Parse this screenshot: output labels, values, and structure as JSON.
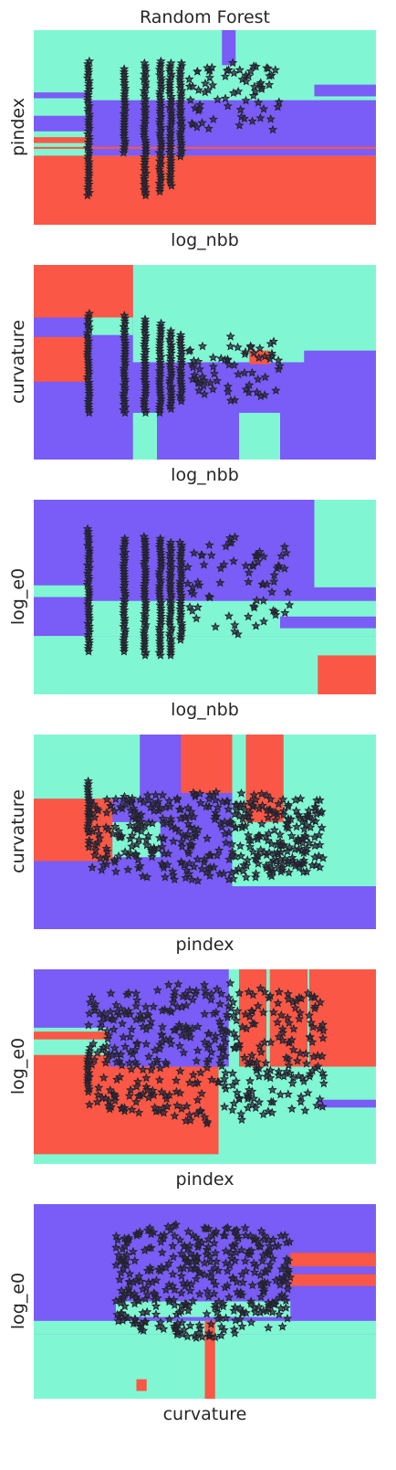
{
  "title": "Random Forest",
  "colors": {
    "purple": "#7a5cf6",
    "teal": "#80f7d2",
    "red": "#fa5746",
    "marker_fill": "#2b2650",
    "marker_edge": "#222222"
  },
  "chart_data": [
    {
      "type": "scatter",
      "subtype": "decision-boundary",
      "xlabel": "log_nbb",
      "ylabel": "pindex",
      "background": "teal",
      "regions": [
        {
          "class": "red",
          "rect": [
            0,
            0.355,
            1,
            0.0
          ]
        },
        {
          "class": "purple",
          "rect": [
            0.16,
            0.64,
            1,
            0.355
          ]
        },
        {
          "class": "purple",
          "rect": [
            0,
            0.56,
            0.16,
            0.48
          ]
        },
        {
          "class": "purple",
          "rect": [
            0.82,
            0.72,
            1,
            0.66
          ]
        },
        {
          "class": "purple",
          "rect": [
            0.55,
            1,
            0.59,
            0.82
          ]
        },
        {
          "class": "red",
          "rect": [
            0,
            0.45,
            0.16,
            0.42
          ]
        },
        {
          "class": "purple",
          "rect": [
            0,
            0.68,
            0.16,
            0.65
          ]
        },
        {
          "class": "red",
          "rect": [
            0,
            0.4,
            1,
            0.39
          ]
        }
      ],
      "points": {
        "columns": [
          {
            "x": 0.16,
            "ymin": 0.15,
            "ymax": 0.84
          },
          {
            "x": 0.265,
            "ymin": 0.37,
            "ymax": 0.8
          },
          {
            "x": 0.325,
            "ymin": 0.15,
            "ymax": 0.83
          },
          {
            "x": 0.37,
            "ymin": 0.17,
            "ymax": 0.84
          },
          {
            "x": 0.4,
            "ymin": 0.2,
            "ymax": 0.83
          },
          {
            "x": 0.43,
            "ymin": 0.35,
            "ymax": 0.83
          }
        ],
        "cloud": {
          "x0": 0.45,
          "x1": 0.72,
          "y0": 0.45,
          "y1": 0.85,
          "n": 70
        }
      }
    },
    {
      "type": "scatter",
      "subtype": "decision-boundary",
      "xlabel": "log_nbb",
      "ylabel": "curvature",
      "background": "purple",
      "regions": [
        {
          "class": "teal",
          "rect": [
            0.29,
            1,
            1,
            0.5
          ]
        },
        {
          "class": "red",
          "rect": [
            0,
            1,
            0.29,
            0.73
          ]
        },
        {
          "class": "red",
          "rect": [
            0,
            0.63,
            0.16,
            0.4
          ]
        },
        {
          "class": "teal",
          "rect": [
            0.29,
            0.24,
            0.36,
            0.0
          ]
        },
        {
          "class": "teal",
          "rect": [
            0.6,
            0.24,
            0.72,
            0.0
          ]
        },
        {
          "class": "purple",
          "rect": [
            0.79,
            0.56,
            1,
            0.44
          ]
        },
        {
          "class": "red",
          "rect": [
            0.63,
            0.56,
            0.69,
            0.49
          ]
        },
        {
          "class": "teal",
          "rect": [
            0.16,
            0.73,
            0.29,
            0.64
          ]
        }
      ],
      "points": {
        "columns": [
          {
            "x": 0.16,
            "ymin": 0.24,
            "ymax": 0.75
          },
          {
            "x": 0.265,
            "ymin": 0.24,
            "ymax": 0.74
          },
          {
            "x": 0.325,
            "ymin": 0.24,
            "ymax": 0.72
          },
          {
            "x": 0.37,
            "ymin": 0.24,
            "ymax": 0.7
          },
          {
            "x": 0.4,
            "ymin": 0.26,
            "ymax": 0.66
          },
          {
            "x": 0.43,
            "ymin": 0.3,
            "ymax": 0.64
          }
        ],
        "cloud": {
          "x0": 0.45,
          "x1": 0.72,
          "y0": 0.3,
          "y1": 0.64,
          "n": 65
        }
      }
    },
    {
      "type": "scatter",
      "subtype": "decision-boundary",
      "xlabel": "log_nbb",
      "ylabel": "log_e0",
      "background": "purple",
      "regions": [
        {
          "class": "teal",
          "rect": [
            0,
            0.3,
            1,
            0.0
          ]
        },
        {
          "class": "teal",
          "rect": [
            0.16,
            0.48,
            1,
            0.3
          ]
        },
        {
          "class": "teal",
          "rect": [
            0.82,
            1,
            1,
            0.55
          ]
        },
        {
          "class": "red",
          "rect": [
            0.83,
            0.2,
            1,
            0.0
          ]
        },
        {
          "class": "teal",
          "rect": [
            0,
            0.56,
            0.16,
            0.5
          ]
        },
        {
          "class": "purple",
          "rect": [
            0.72,
            0.4,
            1,
            0.34
          ]
        }
      ],
      "points": {
        "columns": [
          {
            "x": 0.16,
            "ymin": 0.22,
            "ymax": 0.85
          },
          {
            "x": 0.265,
            "ymin": 0.22,
            "ymax": 0.8
          },
          {
            "x": 0.325,
            "ymin": 0.2,
            "ymax": 0.81
          },
          {
            "x": 0.37,
            "ymin": 0.2,
            "ymax": 0.8
          },
          {
            "x": 0.4,
            "ymin": 0.2,
            "ymax": 0.78
          },
          {
            "x": 0.43,
            "ymin": 0.28,
            "ymax": 0.78
          }
        ],
        "cloud": {
          "x0": 0.45,
          "x1": 0.75,
          "y0": 0.3,
          "y1": 0.82,
          "n": 70
        }
      }
    },
    {
      "type": "scatter",
      "subtype": "decision-boundary",
      "xlabel": "pindex",
      "ylabel": "curvature",
      "background": "purple",
      "regions": [
        {
          "class": "teal",
          "rect": [
            0,
            1,
            0.31,
            0.67
          ]
        },
        {
          "class": "red",
          "rect": [
            0,
            0.67,
            0.23,
            0.35
          ]
        },
        {
          "class": "teal",
          "rect": [
            0.23,
            0.55,
            0.37,
            0.37
          ]
        },
        {
          "class": "red",
          "rect": [
            0.43,
            1,
            0.58,
            0.7
          ]
        },
        {
          "class": "teal",
          "rect": [
            0.58,
            1,
            1,
            0.22
          ]
        },
        {
          "class": "red",
          "rect": [
            0.62,
            1,
            0.73,
            0.55
          ]
        },
        {
          "class": "purple",
          "rect": [
            0.58,
            0.22,
            1,
            0.0
          ]
        },
        {
          "class": "red",
          "rect": [
            0.7,
            1,
            0.72,
            0.7
          ]
        }
      ],
      "points": {
        "columns": [
          {
            "x": 0.16,
            "ymin": 0.5,
            "ymax": 0.76
          }
        ],
        "cloud": {
          "x0": 0.16,
          "x1": 0.85,
          "y0": 0.24,
          "y1": 0.72,
          "n": 420
        }
      }
    },
    {
      "type": "scatter",
      "subtype": "decision-boundary",
      "xlabel": "pindex",
      "ylabel": "log_e0",
      "background": "teal",
      "regions": [
        {
          "class": "purple",
          "rect": [
            0,
            1,
            0.57,
            0.7
          ]
        },
        {
          "class": "red",
          "rect": [
            0,
            0.57,
            0.54,
            0.05
          ]
        },
        {
          "class": "teal",
          "rect": [
            0,
            0.64,
            0.22,
            0.56
          ]
        },
        {
          "class": "red",
          "rect": [
            0,
            0.68,
            0.22,
            0.64
          ]
        },
        {
          "class": "purple",
          "rect": [
            0.22,
            0.7,
            0.57,
            0.5
          ]
        },
        {
          "class": "red",
          "rect": [
            0.69,
            1,
            1,
            0.5
          ]
        },
        {
          "class": "purple",
          "rect": [
            0.83,
            0.33,
            1,
            0.29
          ]
        },
        {
          "class": "teal",
          "rect": [
            0.8,
            1,
            0.8,
            0.0
          ]
        },
        {
          "class": "red",
          "rect": [
            0.6,
            1,
            0.68,
            0.5
          ]
        }
      ],
      "points": {
        "columns": [
          {
            "x": 0.16,
            "ymin": 0.37,
            "ymax": 0.58
          }
        ],
        "cloud": {
          "x0": 0.16,
          "x1": 0.85,
          "y0": 0.2,
          "y1": 0.95,
          "n": 420
        }
      }
    },
    {
      "type": "scatter",
      "subtype": "decision-boundary",
      "xlabel": "curvature",
      "ylabel": "log_e0",
      "background": "purple",
      "regions": [
        {
          "class": "teal",
          "rect": [
            0,
            0.33,
            1,
            0.0
          ]
        },
        {
          "class": "teal",
          "rect": [
            0,
            0.4,
            1,
            0.33
          ]
        },
        {
          "class": "purple",
          "rect": [
            0,
            0.52,
            0.24,
            0.42
          ]
        },
        {
          "class": "teal",
          "rect": [
            0.24,
            0.5,
            0.75,
            0.42
          ]
        },
        {
          "class": "red",
          "rect": [
            0.75,
            0.75,
            1,
            0.58
          ]
        },
        {
          "class": "purple",
          "rect": [
            0.75,
            0.68,
            1,
            0.64
          ]
        },
        {
          "class": "red",
          "rect": [
            0.5,
            0.4,
            0.53,
            0.0
          ]
        },
        {
          "class": "red",
          "rect": [
            0.3,
            0.1,
            0.33,
            0.04
          ]
        }
      ],
      "points": {
        "columns": [],
        "cloud": {
          "x0": 0.24,
          "x1": 0.75,
          "y0": 0.3,
          "y1": 0.92,
          "n": 380
        }
      }
    }
  ]
}
